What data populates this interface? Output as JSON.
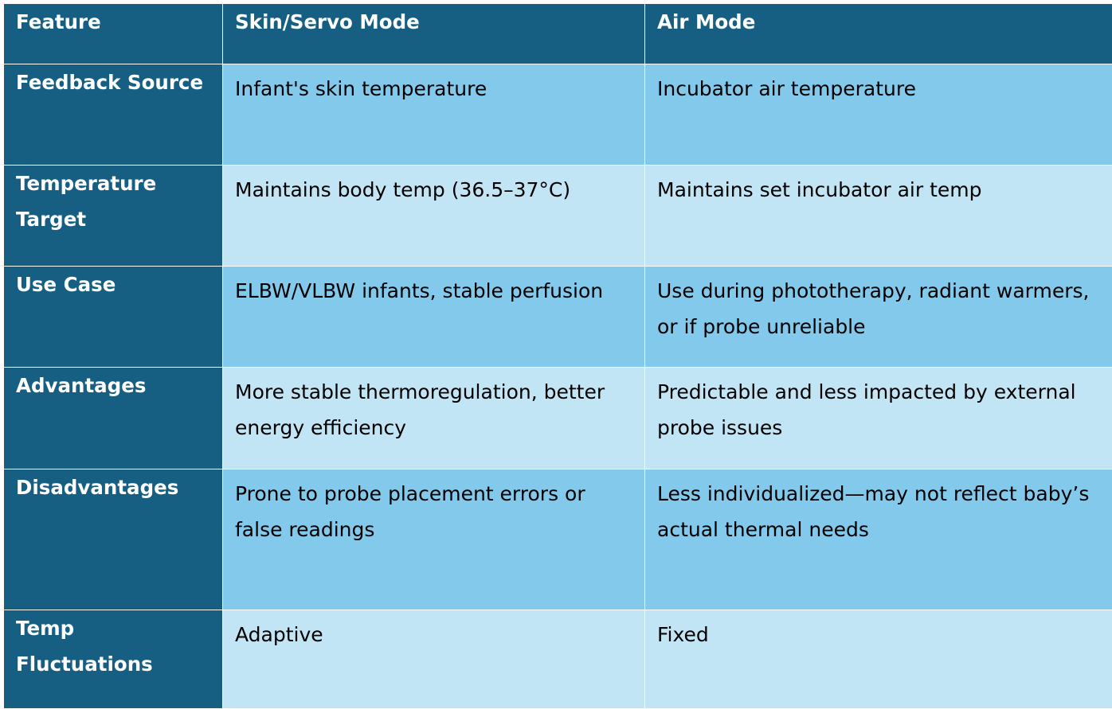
{
  "table": {
    "headers": [
      "Feature",
      "Skin/Servo Mode",
      "Air Mode"
    ],
    "rows": [
      {
        "feature": "Feedback Source",
        "skin": "Infant's skin temperature",
        "air": "Incubator air temperature"
      },
      {
        "feature": "Temperature Target",
        "skin": "Maintains body temp (36.5–37°C)",
        "air": "Maintains set incubator air temp"
      },
      {
        "feature": "Use Case",
        "skin": "ELBW/VLBW infants, stable perfusion",
        "air": "Use during phototherapy, radiant warmers, or if probe unreliable"
      },
      {
        "feature": "Advantages",
        "skin": "More stable thermoregulation, better energy efficiency",
        "air": "Predictable and less impacted by external probe issues"
      },
      {
        "feature": "Disadvantages",
        "skin": "Prone to probe placement errors or false readings",
        "air": "Less individualized—may not reflect baby’s actual thermal needs"
      },
      {
        "feature": "Temp Fluctuations",
        "skin": "Adaptive",
        "air": "Fixed"
      }
    ]
  },
  "colors": {
    "header_bg": "#165e82",
    "row_odd_bg": "#82c9eb",
    "row_even_bg": "#c2e5f5"
  }
}
